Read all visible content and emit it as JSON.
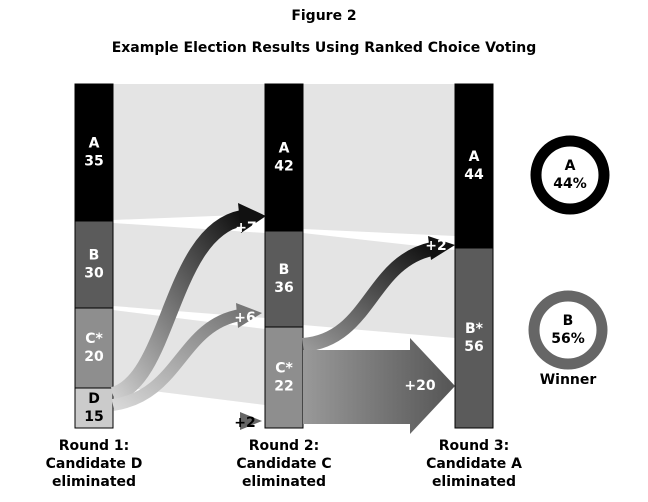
{
  "title": "Figure 2",
  "subtitle": "Example Election Results Using Ranked Choice Voting",
  "rounds": [
    {
      "caption": [
        "Round 1:",
        "Candidate D",
        "eliminated"
      ],
      "segments": [
        {
          "label": "A",
          "value": 35
        },
        {
          "label": "B",
          "value": 30
        },
        {
          "label": "C*",
          "value": 20
        },
        {
          "label": "D",
          "value": 15
        }
      ]
    },
    {
      "caption": [
        "Round 2:",
        "Candidate C",
        "eliminated"
      ],
      "segments": [
        {
          "label": "A",
          "value": 42
        },
        {
          "label": "B",
          "value": 36
        },
        {
          "label": "C*",
          "value": 22
        }
      ]
    },
    {
      "caption": [
        "Round 3:",
        "Candidate A",
        "eliminated"
      ],
      "segments": [
        {
          "label": "A",
          "value": 44
        },
        {
          "label": "B*",
          "value": 56
        }
      ]
    }
  ],
  "transfers": [
    "+7",
    "+6",
    "+2",
    "+2",
    "+20"
  ],
  "results": [
    {
      "label": "A",
      "share": "44%"
    },
    {
      "label": "B",
      "share": "56%"
    }
  ],
  "winner_label": "Winner"
}
